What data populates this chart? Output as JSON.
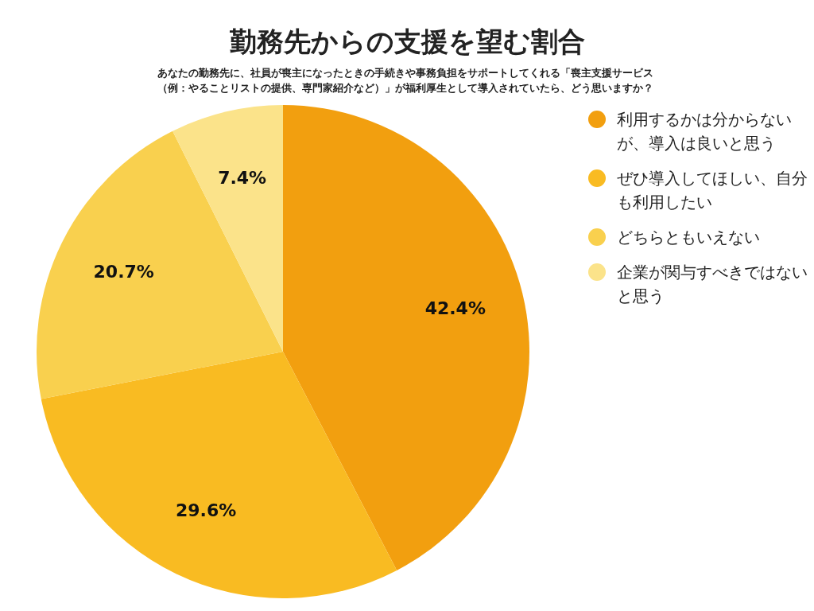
{
  "chart_data": {
    "type": "pie",
    "title": "勤務先からの支援を望む割合",
    "subtitle": "あなたの勤務先に、社員が喪主になったときの手続きや事務負担をサポートしてくれる「喪主支援サービス（例：やることリストの提供、専門家紹介など）」が福利厚生として導入されていたら、どう思いますか？",
    "categories": [
      "利用するかは分からないが、導入は良いと思う",
      "ぜひ導入してほしい、自分も利用したい",
      "どちらともいえない",
      "企業が関与すべきではないと思う"
    ],
    "values": [
      42.4,
      29.6,
      20.7,
      7.4
    ],
    "value_labels": [
      "42.4%",
      "29.6%",
      "20.7%",
      "7.4%"
    ],
    "colors": [
      "#f29f0f",
      "#f9bb22",
      "#f9d04e",
      "#fbe38a"
    ],
    "legend": "right"
  }
}
